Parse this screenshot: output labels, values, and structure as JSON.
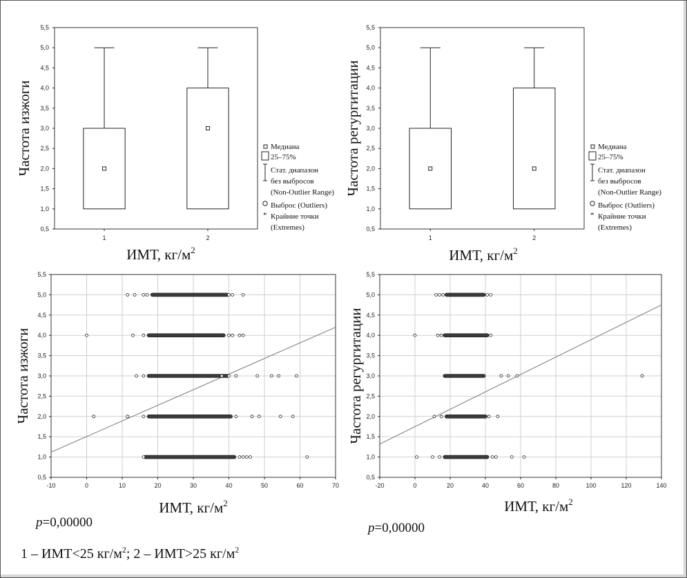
{
  "chart_data": [
    {
      "type": "box",
      "ylabel": "Частота изжоги",
      "xlabel": "ИМТ, кг/м",
      "xlabel_sup": "2",
      "categories": [
        "1",
        "2"
      ],
      "ylim": [
        0.5,
        5.5
      ],
      "ytick_labels": [
        "0,5",
        "1,0",
        "1,5",
        "2,0",
        "2,5",
        "3,0",
        "3,5",
        "4,0",
        "4,5",
        "5,0",
        "5,5"
      ],
      "boxes": [
        {
          "category": "1",
          "median": 2,
          "q1": 1,
          "q3": 3,
          "whisker_low": 1,
          "whisker_high": 5
        },
        {
          "category": "2",
          "median": 3,
          "q1": 1,
          "q3": 4,
          "whisker_low": 1,
          "whisker_high": 5
        }
      ],
      "legend": [
        "Медиана",
        "25–75%",
        "Стат. диапазон",
        "без выбросов",
        "(Non-Outlier Range)",
        "Выброс (Outliers)",
        "Крайние точки",
        "(Extremes)"
      ],
      "grid": false
    },
    {
      "type": "box",
      "ylabel": "Частота регургитации",
      "xlabel": "ИМТ, кг/м",
      "xlabel_sup": "2",
      "categories": [
        "1",
        "2"
      ],
      "ylim": [
        0.5,
        5.5
      ],
      "ytick_labels": [
        "0,5",
        "1,0",
        "1,5",
        "2,0",
        "2,5",
        "3,0",
        "3,5",
        "4,0",
        "4,5",
        "5,0",
        "5,5"
      ],
      "boxes": [
        {
          "category": "1",
          "median": 2,
          "q1": 1,
          "q3": 3,
          "whisker_low": 1,
          "whisker_high": 5
        },
        {
          "category": "2",
          "median": 2,
          "q1": 1,
          "q3": 4,
          "whisker_low": 1,
          "whisker_high": 5
        }
      ],
      "legend": [
        "Медиана",
        "25–75%",
        "Стат. диапазон",
        "без выбросов",
        "(Non-Outlier Range)",
        "Выброс (Outliers)",
        "Крайние точки",
        "(Extremes)"
      ],
      "grid": false
    },
    {
      "type": "scatter",
      "ylabel": "Частота изжоги",
      "xlabel": "ИМТ, кг/м",
      "xlabel_sup": "2",
      "xlim": [
        -10,
        70
      ],
      "ylim": [
        0.5,
        5.5
      ],
      "xtick_labels": [
        "-10",
        "0",
        "10",
        "20",
        "30",
        "40",
        "50",
        "60",
        "70"
      ],
      "ytick_labels": [
        "0,5",
        "1,0",
        "1,5",
        "2,0",
        "2,5",
        "3,0",
        "3,5",
        "4,0",
        "4,5",
        "5,0",
        "5,5"
      ],
      "grid": true,
      "dense_ranges": [
        {
          "y": 5,
          "x_from": 18,
          "x_to": 40
        },
        {
          "y": 4,
          "x_from": 17,
          "x_to": 39
        },
        {
          "y": 3,
          "x_from": 17,
          "x_to": 40
        },
        {
          "y": 2,
          "x_from": 17,
          "x_to": 41
        },
        {
          "y": 1,
          "x_from": 16,
          "x_to": 42
        }
      ],
      "points": [
        {
          "x": 11.5,
          "y": 5
        },
        {
          "x": 13.5,
          "y": 5
        },
        {
          "x": 16,
          "y": 5
        },
        {
          "x": 17,
          "y": 5
        },
        {
          "x": 40,
          "y": 5
        },
        {
          "x": 41,
          "y": 5
        },
        {
          "x": 44,
          "y": 5
        },
        {
          "x": 0,
          "y": 4
        },
        {
          "x": 13,
          "y": 4
        },
        {
          "x": 16,
          "y": 4
        },
        {
          "x": 40,
          "y": 4
        },
        {
          "x": 41,
          "y": 4
        },
        {
          "x": 43,
          "y": 4
        },
        {
          "x": 44,
          "y": 4
        },
        {
          "x": 14,
          "y": 3
        },
        {
          "x": 16,
          "y": 3
        },
        {
          "x": 38,
          "y": 3
        },
        {
          "x": 40,
          "y": 3
        },
        {
          "x": 42,
          "y": 3
        },
        {
          "x": 48,
          "y": 3
        },
        {
          "x": 52,
          "y": 3
        },
        {
          "x": 54,
          "y": 3
        },
        {
          "x": 59,
          "y": 3
        },
        {
          "x": 2,
          "y": 2
        },
        {
          "x": 11.5,
          "y": 2
        },
        {
          "x": 16,
          "y": 2
        },
        {
          "x": 42,
          "y": 2
        },
        {
          "x": 46.5,
          "y": 2
        },
        {
          "x": 48.5,
          "y": 2
        },
        {
          "x": 54.5,
          "y": 2
        },
        {
          "x": 58,
          "y": 2
        },
        {
          "x": 16,
          "y": 1
        },
        {
          "x": 43,
          "y": 1
        },
        {
          "x": 44,
          "y": 1
        },
        {
          "x": 45,
          "y": 1
        },
        {
          "x": 46,
          "y": 1
        },
        {
          "x": 62,
          "y": 1
        }
      ],
      "regression": {
        "x1": -10,
        "y1": 1.12,
        "x2": 70,
        "y2": 4.2
      }
    },
    {
      "type": "scatter",
      "ylabel": "Частота регургитации",
      "xlabel": "ИМТ, кг/м",
      "xlabel_sup": "2",
      "xlim": [
        -20,
        140
      ],
      "ylim": [
        0.5,
        5.5
      ],
      "xtick_labels": [
        "-20",
        "0",
        "20",
        "40",
        "60",
        "80",
        "100",
        "120",
        "140"
      ],
      "ytick_labels": [
        "0,5",
        "1,0",
        "1,5",
        "2,0",
        "2,5",
        "3,0",
        "3,5",
        "4,0",
        "4,5",
        "5,0",
        "5,5"
      ],
      "grid": true,
      "dense_ranges": [
        {
          "y": 5,
          "x_from": 17,
          "x_to": 40
        },
        {
          "y": 4,
          "x_from": 16,
          "x_to": 42
        },
        {
          "y": 3,
          "x_from": 16,
          "x_to": 40
        },
        {
          "y": 2,
          "x_from": 17,
          "x_to": 41
        },
        {
          "y": 1,
          "x_from": 16,
          "x_to": 42
        }
      ],
      "points": [
        {
          "x": 12,
          "y": 5
        },
        {
          "x": 14,
          "y": 5
        },
        {
          "x": 16,
          "y": 5
        },
        {
          "x": 41,
          "y": 5
        },
        {
          "x": 43,
          "y": 5
        },
        {
          "x": 0,
          "y": 4
        },
        {
          "x": 13,
          "y": 4
        },
        {
          "x": 15,
          "y": 4
        },
        {
          "x": 43,
          "y": 4
        },
        {
          "x": 49,
          "y": 3
        },
        {
          "x": 53,
          "y": 3
        },
        {
          "x": 58,
          "y": 3
        },
        {
          "x": 129,
          "y": 3
        },
        {
          "x": 11,
          "y": 2
        },
        {
          "x": 15,
          "y": 2
        },
        {
          "x": 42,
          "y": 2
        },
        {
          "x": 47,
          "y": 2
        },
        {
          "x": 1,
          "y": 1
        },
        {
          "x": 10,
          "y": 1
        },
        {
          "x": 14,
          "y": 1
        },
        {
          "x": 44,
          "y": 1
        },
        {
          "x": 46,
          "y": 1
        },
        {
          "x": 55,
          "y": 1
        },
        {
          "x": 62,
          "y": 1
        }
      ],
      "regression": {
        "x1": -20,
        "y1": 1.32,
        "x2": 140,
        "y2": 4.75
      }
    }
  ],
  "notes": {
    "p_left": "p",
    "p_left_value": "=0,00000",
    "p_right": "p",
    "p_right_value": "=0,00000",
    "footnote_a": "1 – ИМТ<25 кг/м",
    "footnote_sup1": "2",
    "footnote_b": "; 2 – ИМТ>25 кг/м",
    "footnote_sup2": "2"
  }
}
